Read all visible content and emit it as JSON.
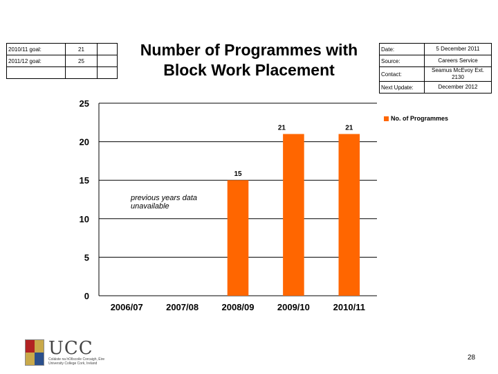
{
  "goals": [
    {
      "label": "2010/11 goal:",
      "value": "21"
    },
    {
      "label": "2011/12 goal:",
      "value": "25"
    }
  ],
  "title": "Number of Programmes with Block Work Placement",
  "meta": {
    "date_label": "Date:",
    "date_value": "5 December 2011",
    "source_label": "Source:",
    "source_value": "Careers Service",
    "contact_label": "Contact:",
    "contact_value": "Seamus McEvoy Ext. 2130",
    "next_label": "Next Update:",
    "next_value": "December 2012"
  },
  "annotation": "previous years data unavailable",
  "logo": {
    "wordmark": "UCC",
    "subtitle_line1": "Coláiste na hOllscoile Corcaigh, Éire",
    "subtitle_line2": "University College Cork, Ireland"
  },
  "page_number": "28",
  "colors": {
    "bar": "#ff6600",
    "grid": "#000000"
  },
  "chart_data": {
    "type": "bar",
    "categories": [
      "2006/07",
      "2007/08",
      "2008/09",
      "2009/10",
      "2010/11"
    ],
    "series": [
      {
        "name": "No. of Programmes",
        "values": [
          null,
          null,
          15,
          21,
          21
        ]
      }
    ],
    "data_labels": [
      "",
      "",
      "15",
      "21",
      "21"
    ],
    "yticks": [
      0,
      5,
      10,
      15,
      20,
      25
    ],
    "ylim": [
      0,
      25
    ],
    "grid": true,
    "legend": "top-right",
    "title": "Number of Programmes with Block Work Placement"
  }
}
